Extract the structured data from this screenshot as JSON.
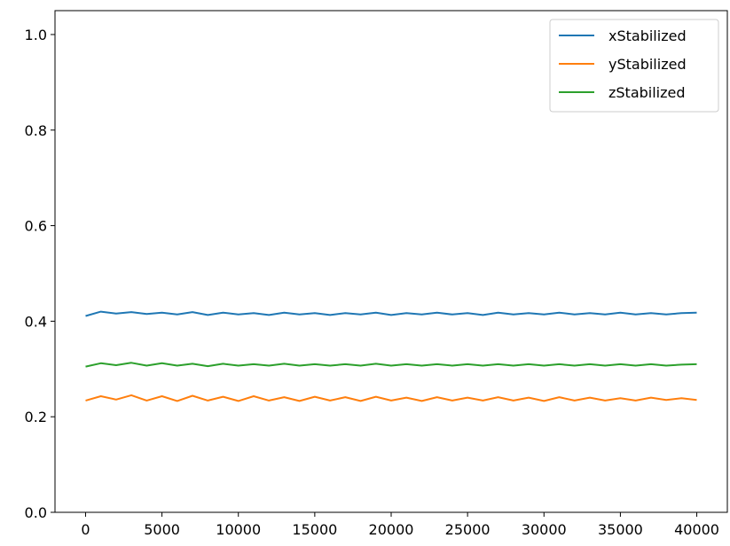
{
  "chart_data": {
    "type": "line",
    "title": "",
    "xlabel": "",
    "ylabel": "",
    "xlim": [
      -2000,
      42000
    ],
    "ylim": [
      0.0,
      1.05
    ],
    "xticks": [
      0,
      5000,
      10000,
      15000,
      20000,
      25000,
      30000,
      35000,
      40000
    ],
    "xtick_labels": [
      "0",
      "5000",
      "10000",
      "15000",
      "20000",
      "25000",
      "30000",
      "35000",
      "40000"
    ],
    "yticks": [
      0.0,
      0.2,
      0.4,
      0.6,
      0.8,
      1.0
    ],
    "ytick_labels": [
      "0.0",
      "0.2",
      "0.4",
      "0.6",
      "0.8",
      "1.0"
    ],
    "grid": false,
    "legend_position": "top-right",
    "x": [
      0,
      1000,
      2000,
      3000,
      4000,
      5000,
      6000,
      7000,
      8000,
      9000,
      10000,
      11000,
      12000,
      13000,
      14000,
      15000,
      16000,
      17000,
      18000,
      19000,
      20000,
      21000,
      22000,
      23000,
      24000,
      25000,
      26000,
      27000,
      28000,
      29000,
      30000,
      31000,
      32000,
      33000,
      34000,
      35000,
      36000,
      37000,
      38000,
      39000,
      40000
    ],
    "series": [
      {
        "name": "xStabilized",
        "color": "#1f77b4",
        "values": [
          0.411,
          0.42,
          0.416,
          0.419,
          0.415,
          0.418,
          0.414,
          0.419,
          0.413,
          0.418,
          0.414,
          0.417,
          0.413,
          0.418,
          0.414,
          0.417,
          0.413,
          0.417,
          0.414,
          0.418,
          0.413,
          0.417,
          0.414,
          0.418,
          0.414,
          0.417,
          0.413,
          0.418,
          0.414,
          0.417,
          0.414,
          0.418,
          0.414,
          0.417,
          0.414,
          0.418,
          0.414,
          0.417,
          0.414,
          0.417,
          0.418
        ]
      },
      {
        "name": "yStabilized",
        "color": "#ff7f0e",
        "values": [
          0.234,
          0.243,
          0.236,
          0.245,
          0.234,
          0.243,
          0.233,
          0.244,
          0.234,
          0.242,
          0.233,
          0.243,
          0.234,
          0.241,
          0.233,
          0.242,
          0.234,
          0.241,
          0.233,
          0.242,
          0.234,
          0.24,
          0.233,
          0.241,
          0.234,
          0.24,
          0.234,
          0.241,
          0.234,
          0.24,
          0.233,
          0.241,
          0.234,
          0.24,
          0.234,
          0.239,
          0.234,
          0.24,
          0.235,
          0.239,
          0.235
        ]
      },
      {
        "name": "zStabilized",
        "color": "#2ca02c",
        "values": [
          0.305,
          0.312,
          0.308,
          0.313,
          0.307,
          0.312,
          0.307,
          0.311,
          0.306,
          0.311,
          0.307,
          0.31,
          0.307,
          0.311,
          0.307,
          0.31,
          0.307,
          0.31,
          0.307,
          0.311,
          0.307,
          0.31,
          0.307,
          0.31,
          0.307,
          0.31,
          0.307,
          0.31,
          0.307,
          0.31,
          0.307,
          0.31,
          0.307,
          0.31,
          0.307,
          0.31,
          0.307,
          0.31,
          0.307,
          0.309,
          0.31
        ]
      }
    ]
  }
}
